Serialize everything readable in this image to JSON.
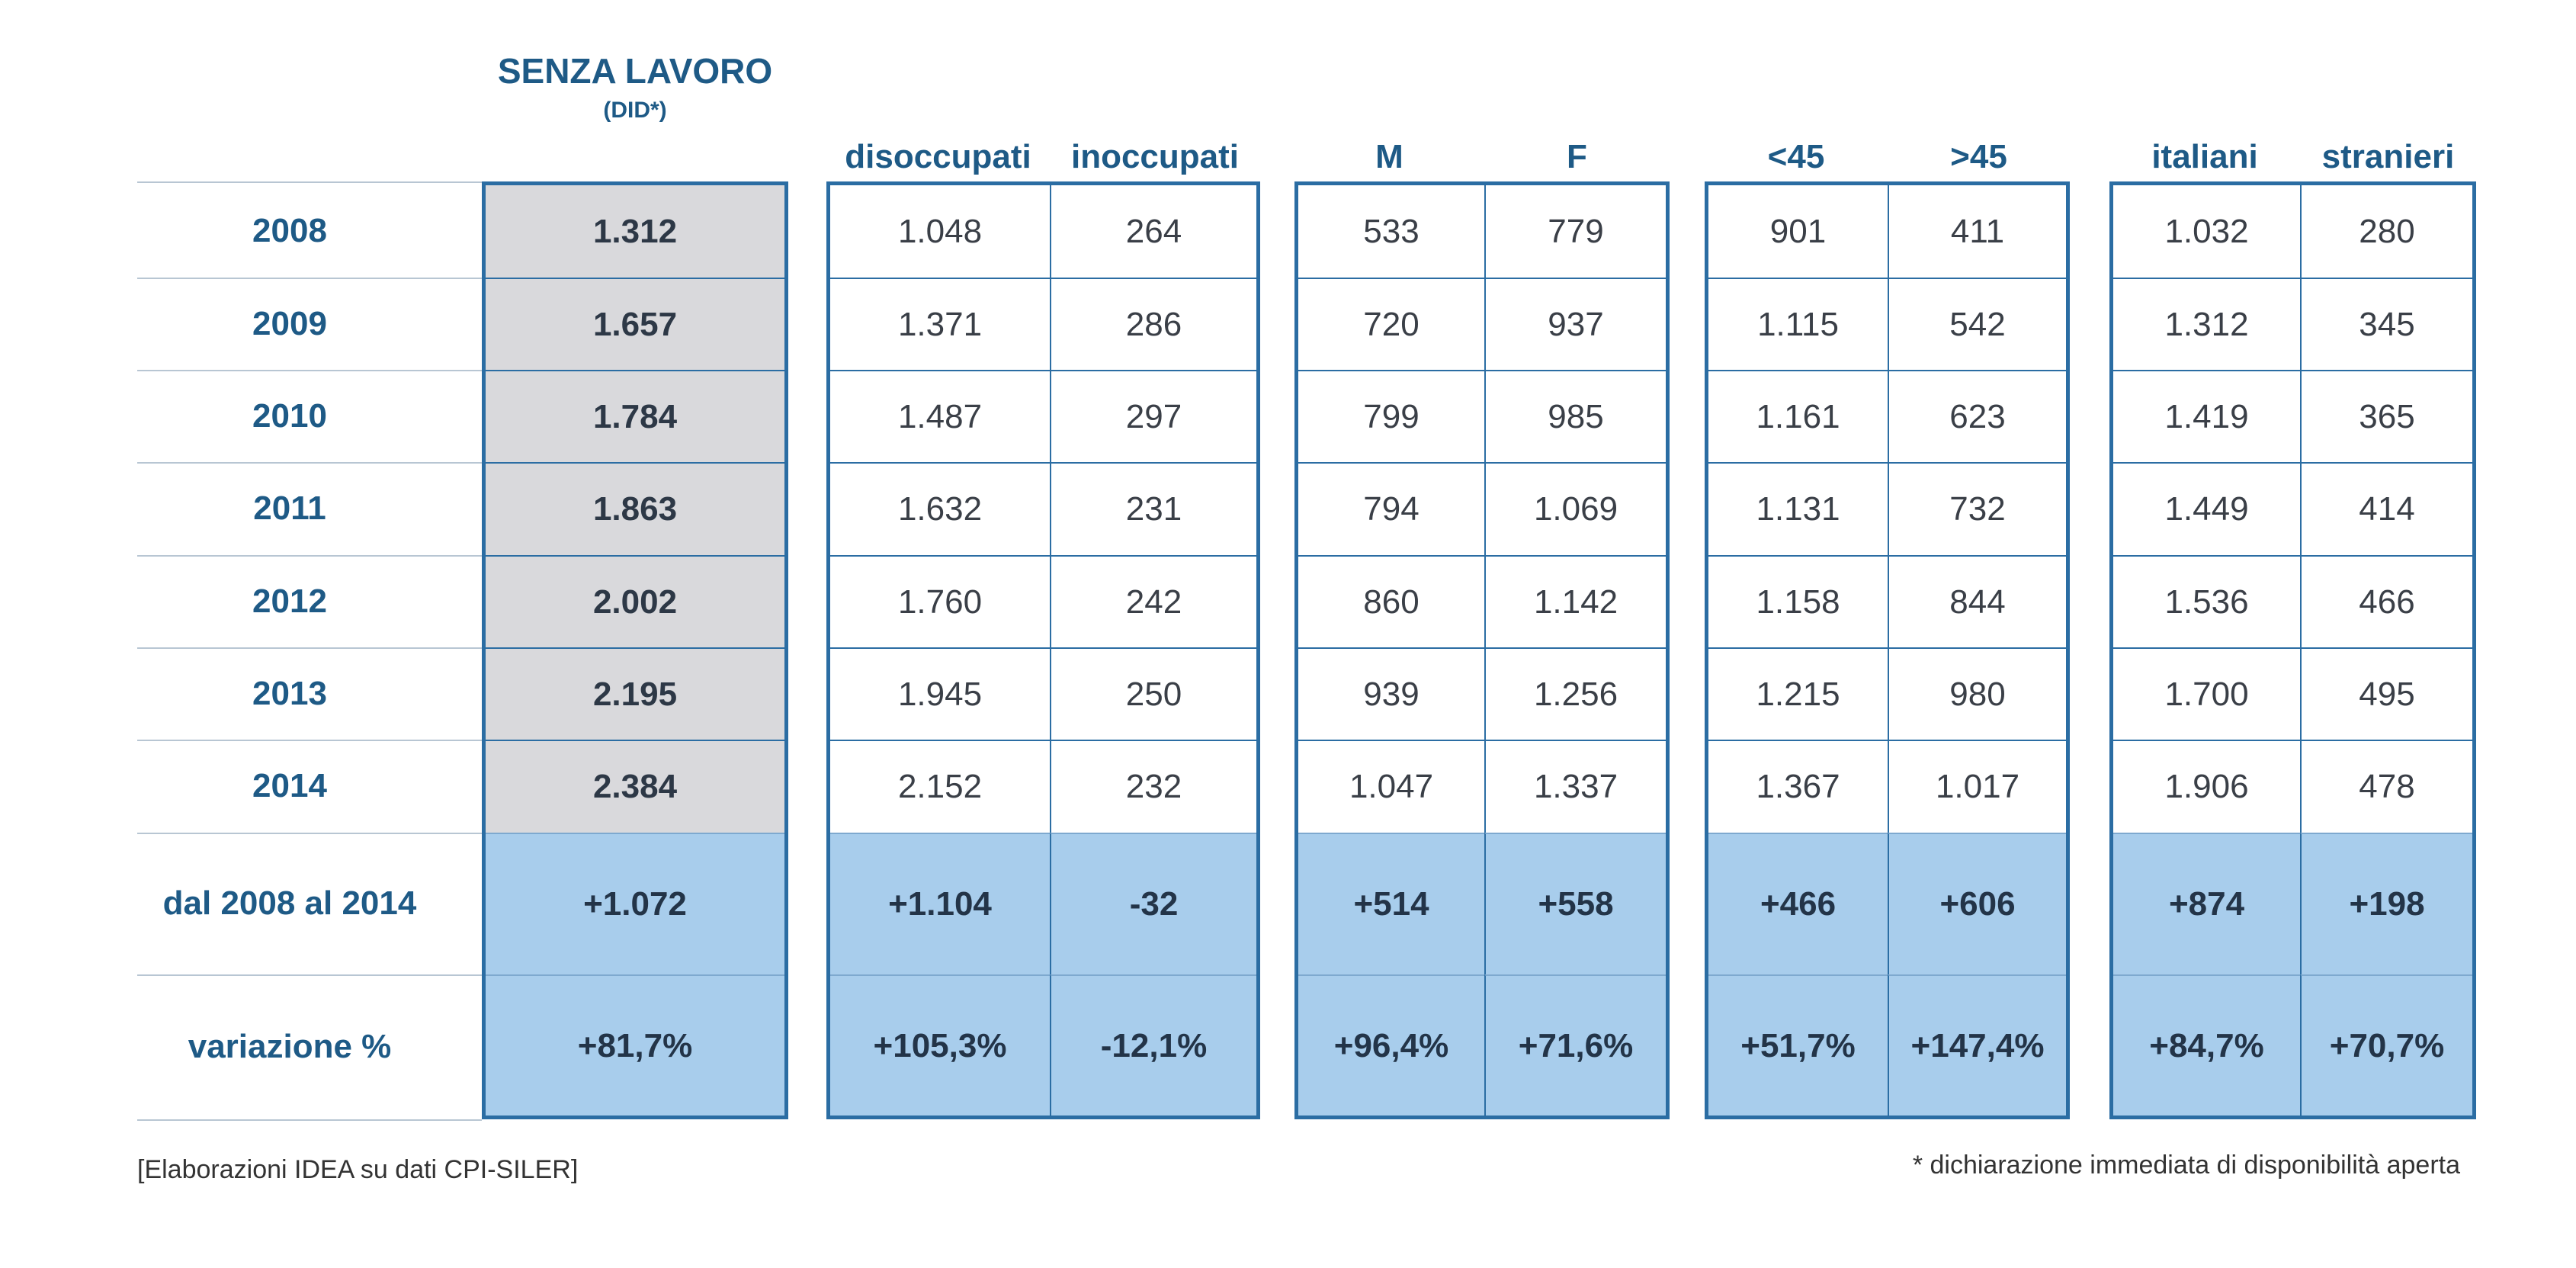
{
  "header": {
    "title": "SENZA LAVORO",
    "subtitle": "(DID*)"
  },
  "columns": {
    "total": "",
    "disoccupati": "disoccupati",
    "inoccupati": "inoccupati",
    "m": "M",
    "f": "F",
    "under45": "<45",
    "over45": ">45",
    "italiani": "italiani",
    "stranieri": "stranieri"
  },
  "rows": [
    {
      "label": "2008",
      "values": [
        "1.312",
        "1.048",
        "264",
        "533",
        "779",
        "901",
        "411",
        "1.032",
        "280"
      ]
    },
    {
      "label": "2009",
      "values": [
        "1.657",
        "1.371",
        "286",
        "720",
        "937",
        "1.115",
        "542",
        "1.312",
        "345"
      ]
    },
    {
      "label": "2010",
      "values": [
        "1.784",
        "1.487",
        "297",
        "799",
        "985",
        "1.161",
        "623",
        "1.419",
        "365"
      ]
    },
    {
      "label": "2011",
      "values": [
        "1.863",
        "1.632",
        "231",
        "794",
        "1.069",
        "1.131",
        "732",
        "1.449",
        "414"
      ]
    },
    {
      "label": "2012",
      "values": [
        "2.002",
        "1.760",
        "242",
        "860",
        "1.142",
        "1.158",
        "844",
        "1.536",
        "466"
      ]
    },
    {
      "label": "2013",
      "values": [
        "2.195",
        "1.945",
        "250",
        "939",
        "1.256",
        "1.215",
        "980",
        "1.700",
        "495"
      ]
    },
    {
      "label": "2014",
      "values": [
        "2.384",
        "2.152",
        "232",
        "1.047",
        "1.337",
        "1.367",
        "1.017",
        "1.906",
        "478"
      ]
    },
    {
      "label": "dal 2008 al 2014",
      "values": [
        "+1.072",
        "+1.104",
        "-32",
        "+514",
        "+558",
        "+466",
        "+606",
        "+874",
        "+198"
      ]
    },
    {
      "label": "variazione %",
      "values": [
        "+81,7%",
        "+105,3%",
        "-12,1%",
        "+96,4%",
        "+71,6%",
        "+51,7%",
        "+147,4%",
        "+84,7%",
        "+70,7%"
      ]
    }
  ],
  "footer": {
    "source": "[Elaborazioni IDEA su dati CPI-SILER]",
    "note": "* dichiarazione immediata di disponibilità aperta"
  },
  "colors": {
    "heading": "#1e5a86",
    "border": "#2b6da3",
    "total_column_bg": "#d9d9dc",
    "summary_rows_bg": "#a8cdec"
  }
}
